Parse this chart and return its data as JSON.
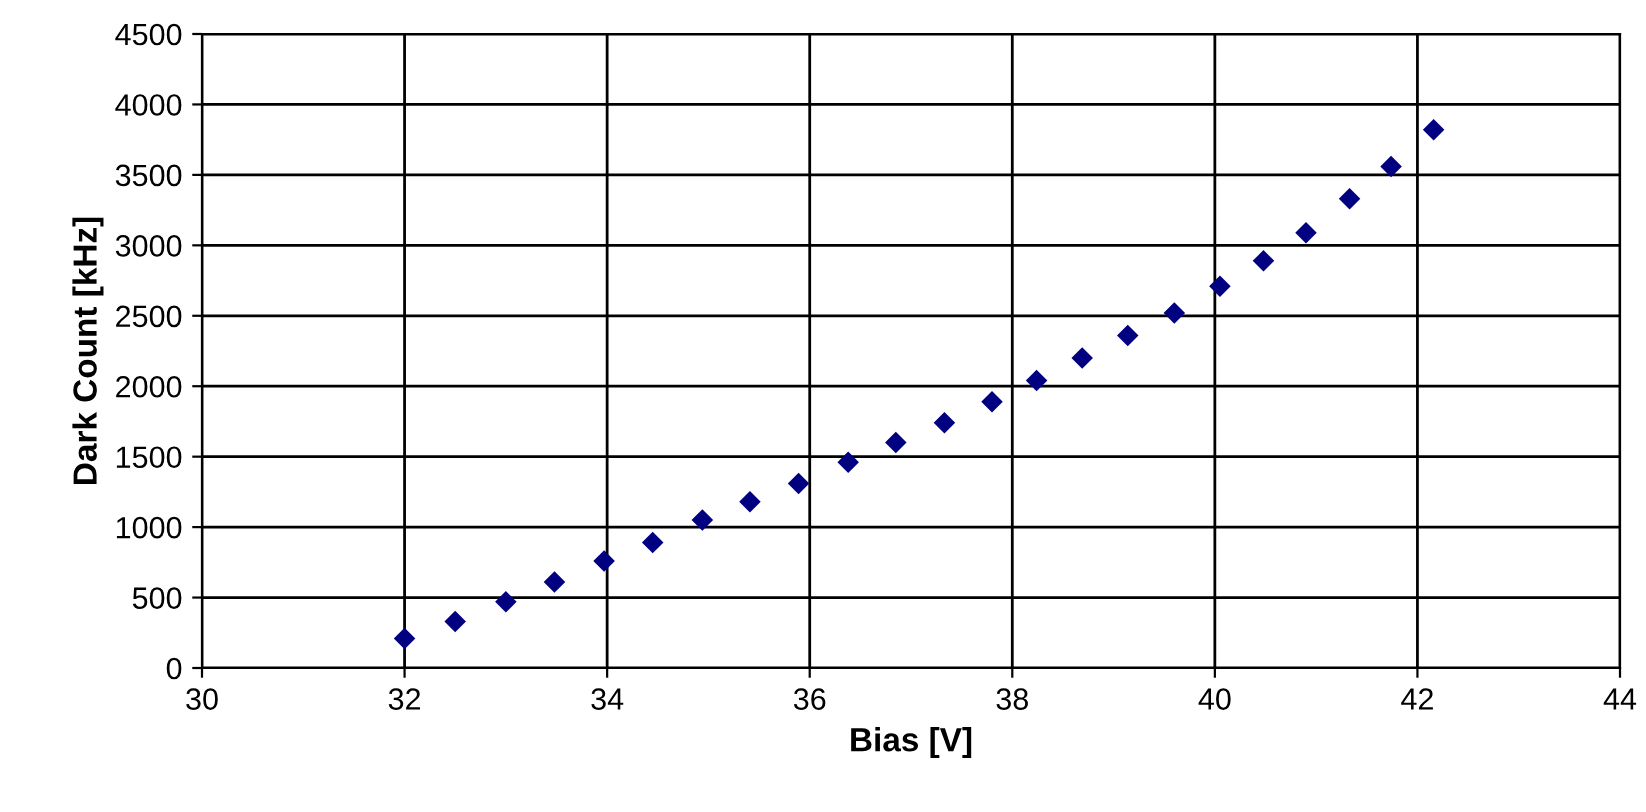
{
  "chart_data": {
    "type": "scatter",
    "xlabel": "Bias [V]",
    "ylabel": "Dark Count [kHz]",
    "x": [
      32.0,
      32.5,
      33.0,
      33.48,
      33.97,
      34.45,
      34.94,
      35.41,
      35.89,
      36.38,
      36.85,
      37.33,
      37.8,
      38.24,
      38.69,
      39.14,
      39.6,
      40.05,
      40.48,
      40.9,
      41.33,
      41.74,
      42.16
    ],
    "series": [
      {
        "color": "#000080",
        "values": [
          210,
          330,
          470,
          610,
          760,
          890,
          1050,
          1180,
          1310,
          1460,
          1600,
          1740,
          1890,
          2040,
          2200,
          2360,
          2520,
          2710,
          2890,
          3090,
          3330,
          3560,
          3820
        ]
      }
    ],
    "xlim": [
      30,
      44
    ],
    "xticks": [
      30,
      32,
      34,
      36,
      38,
      40,
      42,
      44
    ],
    "ylim": [
      0,
      4500
    ],
    "yticks": [
      0,
      500,
      1000,
      1500,
      2000,
      2500,
      3000,
      3500,
      4000,
      4500
    ],
    "grid": true,
    "marker": "diamond",
    "legend": false
  }
}
